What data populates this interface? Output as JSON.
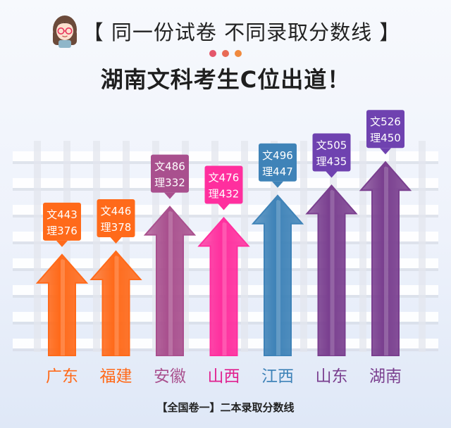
{
  "header": {
    "title": "【 同一份试卷 不同录取分数线 】",
    "subtitle": "湖南文科考生C位出道！",
    "avatar_icon": "girl-avatar-icon",
    "dot_colors": [
      "#e4566a",
      "#e86a55",
      "#f08a3e"
    ]
  },
  "footer": {
    "caption": "【全国卷一】二本录取分数线"
  },
  "chart_data": {
    "type": "bar",
    "title": "【 同一份试卷 不同录取分数线 】",
    "subtitle": "湖南文科考生C位出道！",
    "caption": "【全国卷一】二本录取分数线",
    "categories": [
      "广东",
      "福建",
      "安徽",
      "山西",
      "江西",
      "山东",
      "湖南"
    ],
    "series": [
      {
        "name": "文",
        "values": [
          443,
          446,
          486,
          476,
          496,
          505,
          526
        ]
      },
      {
        "name": "理",
        "values": [
          376,
          378,
          332,
          432,
          447,
          435,
          450
        ]
      }
    ],
    "labels": [
      {
        "arts": "文443",
        "science": "理376"
      },
      {
        "arts": "文446",
        "science": "理378"
      },
      {
        "arts": "文486",
        "science": "理332"
      },
      {
        "arts": "文476",
        "science": "理432"
      },
      {
        "arts": "文496",
        "science": "理447"
      },
      {
        "arts": "文505",
        "science": "理435"
      },
      {
        "arts": "文526",
        "science": "理450"
      }
    ],
    "colors": [
      "#ff6a1a",
      "#ff6a1a",
      "#a9508e",
      "#ff2f9e",
      "#3f83b8",
      "#7a3f8f",
      "#7a3f8f"
    ],
    "label_colors": [
      "#ff6a1a",
      "#ff6a1a",
      "#a9508e",
      "#ff2f9e",
      "#3f83b8",
      "#6f42b0",
      "#6f42b0"
    ],
    "category_label_colors": [
      "#ff6a1a",
      "#ff6a1a",
      "#a9508e",
      "#e0208f",
      "#3f83b8",
      "#7a3f8f",
      "#7a3f8f"
    ],
    "grid": true
  }
}
